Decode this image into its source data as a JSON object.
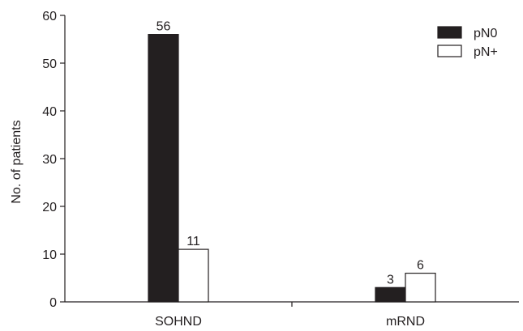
{
  "chart_data": {
    "type": "bar",
    "categories": [
      "SOHND",
      "mRND"
    ],
    "series": [
      {
        "name": "pN0",
        "values": [
          56,
          3
        ],
        "color": "#231f20"
      },
      {
        "name": "pN+",
        "values": [
          11,
          6
        ],
        "color": "#ffffff"
      }
    ],
    "data_labels": [
      [
        "56",
        "3"
      ],
      [
        "11",
        "6"
      ]
    ],
    "title": "",
    "xlabel": "",
    "ylabel": "No. of patients",
    "ylim": [
      0,
      60
    ],
    "yticks": [
      0,
      10,
      20,
      30,
      40,
      50,
      60
    ],
    "grid": false,
    "legend_position": "top-right"
  }
}
